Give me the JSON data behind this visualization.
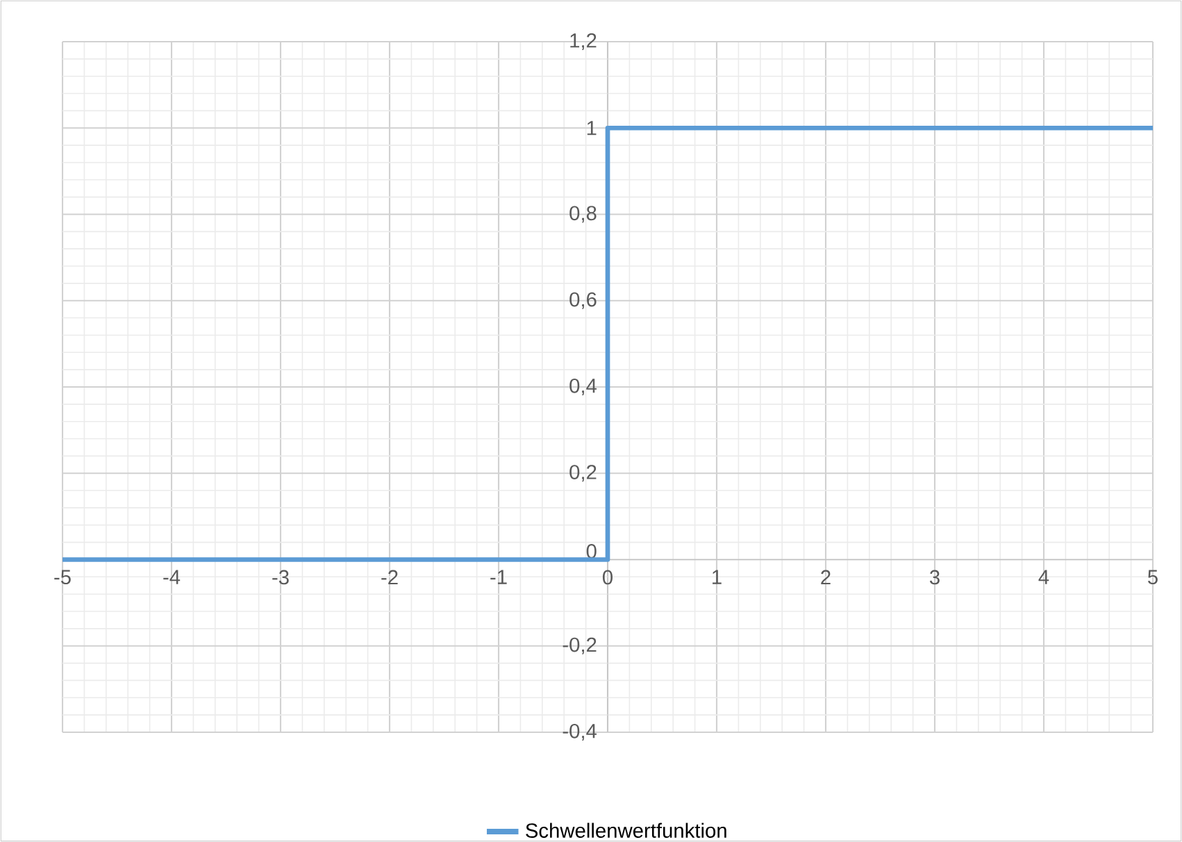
{
  "chart_data": {
    "type": "line",
    "series": [
      {
        "name": "Schwellenwertfunktion",
        "color": "#5b9bd5",
        "x": [
          -5,
          0,
          0,
          5
        ],
        "values": [
          0,
          0,
          1,
          1
        ]
      }
    ],
    "xlim": [
      -5,
      5
    ],
    "ylim": [
      -0.4,
      1.2
    ],
    "xticks": [
      -5,
      -4,
      -3,
      -2,
      -1,
      0,
      1,
      2,
      3,
      4,
      5
    ],
    "yticks": [
      {
        "value": -0.4,
        "label": "-0,4"
      },
      {
        "value": -0.2,
        "label": "-0,2"
      },
      0,
      {
        "value": 0.2,
        "label": "0,2"
      },
      {
        "value": 0.4,
        "label": "0,4"
      },
      {
        "value": 0.6,
        "label": "0,6"
      },
      {
        "value": 0.8,
        "label": "0,8"
      },
      1,
      {
        "value": 1.2,
        "label": "1,2"
      }
    ],
    "grid": true,
    "legend": "bottom"
  }
}
